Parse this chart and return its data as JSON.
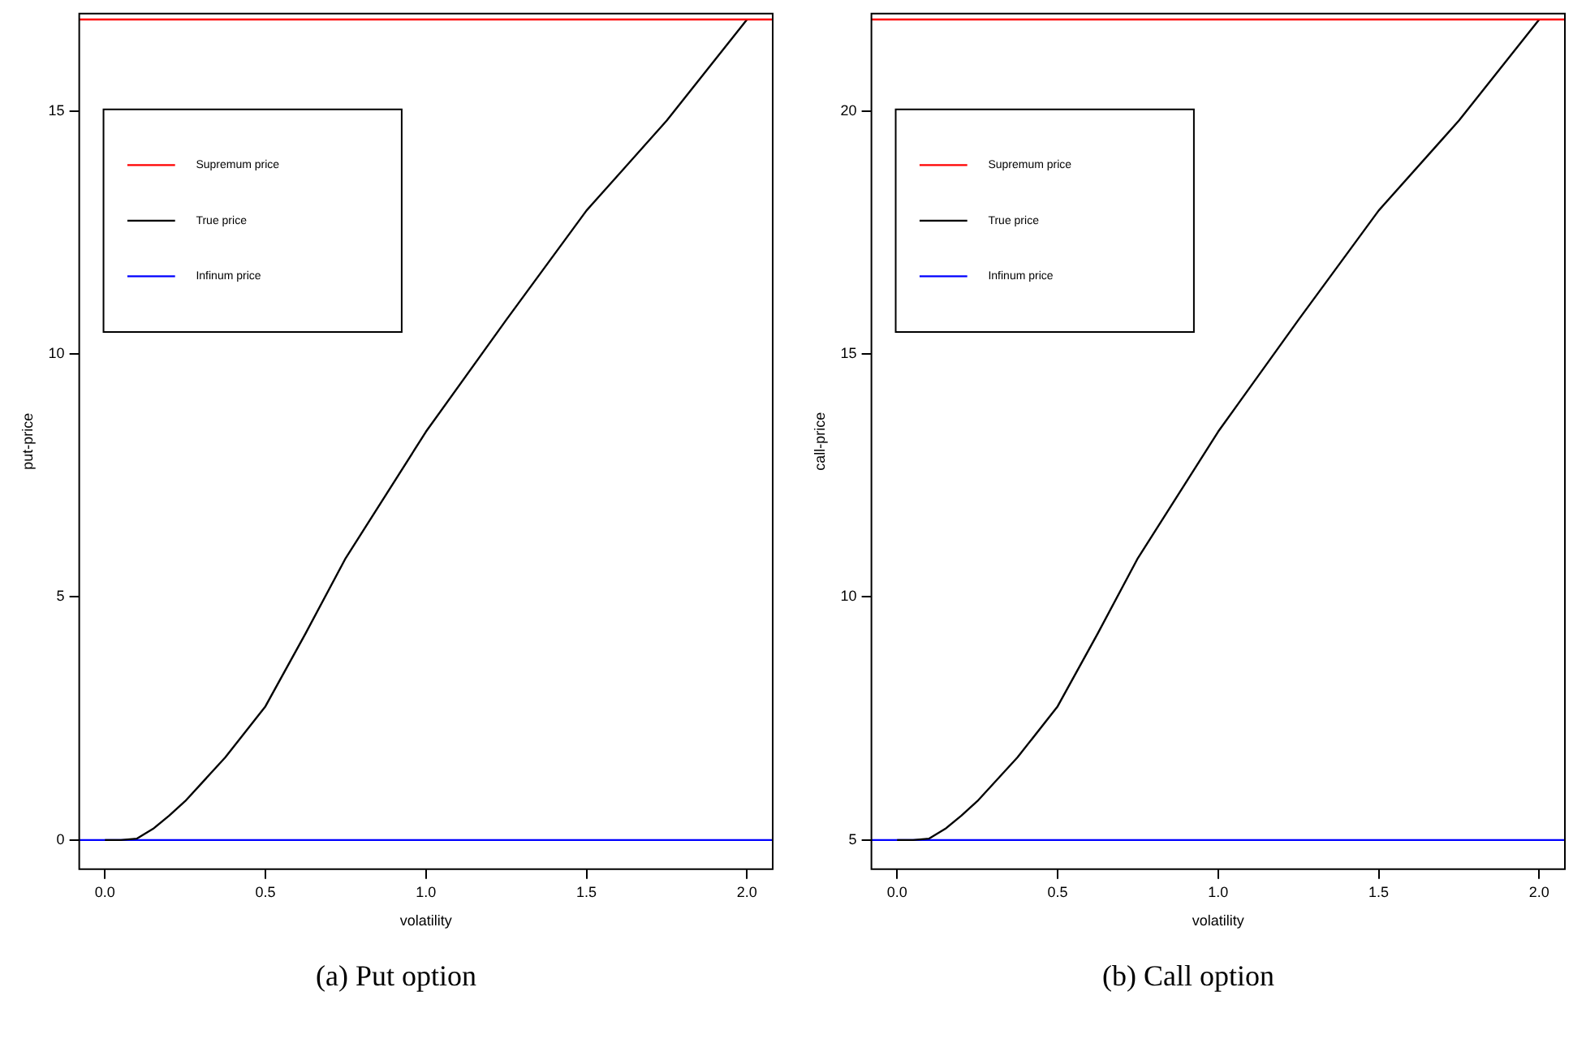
{
  "chart_data": [
    {
      "type": "line",
      "title": "(a) Put option",
      "xlabel": "volatility",
      "ylabel": "put-price",
      "xlim": [
        -0.08,
        2.08
      ],
      "xticks": [
        {
          "value": 0,
          "label": "0.0"
        },
        {
          "value": 0.5,
          "label": "0.5"
        },
        {
          "value": 1,
          "label": "1.0"
        },
        {
          "value": 1.5,
          "label": "1.5"
        },
        {
          "value": 2,
          "label": "2.0"
        }
      ],
      "ylim": [
        -0.6,
        17.0
      ],
      "yticks": [
        0,
        5,
        10,
        15
      ],
      "legend": "top left",
      "marker": "none",
      "series": [
        {
          "name": "Supremum price",
          "color": "#ff0000",
          "x": [
            -0.08,
            2.08
          ],
          "values": [
            16.88,
            16.88
          ]
        },
        {
          "name": "True price",
          "color": "#000000",
          "x": [
            0,
            0.05,
            0.1,
            0.15,
            0.2,
            0.25,
            0.375,
            0.5,
            0.625,
            0.75,
            1.0,
            1.25,
            1.5,
            1.75,
            2.0
          ],
          "values": [
            0,
            0,
            0.03,
            0.23,
            0.5,
            0.8,
            1.7,
            2.75,
            4.25,
            5.8,
            8.4,
            10.7,
            12.95,
            14.8,
            16.88
          ]
        },
        {
          "name": "Infinum price",
          "color": "#0000ff",
          "x": [
            -0.08,
            2.08
          ],
          "values": [
            0,
            0
          ]
        }
      ]
    },
    {
      "type": "line",
      "title": "(b) Call option",
      "xlabel": "volatility",
      "ylabel": "call-price",
      "xlim": [
        -0.08,
        2.08
      ],
      "xticks": [
        {
          "value": 0,
          "label": "0.0"
        },
        {
          "value": 0.5,
          "label": "0.5"
        },
        {
          "value": 1,
          "label": "1.0"
        },
        {
          "value": 1.5,
          "label": "1.5"
        },
        {
          "value": 2,
          "label": "2.0"
        }
      ],
      "ylim": [
        4.4,
        22.0
      ],
      "yticks": [
        5,
        10,
        15,
        20
      ],
      "legend": "top left",
      "marker": "none",
      "series": [
        {
          "name": "Supremum price",
          "color": "#ff0000",
          "x": [
            -0.08,
            2.08
          ],
          "values": [
            21.88,
            21.88
          ]
        },
        {
          "name": "True price",
          "color": "#000000",
          "x": [
            0,
            0.05,
            0.1,
            0.15,
            0.2,
            0.25,
            0.375,
            0.5,
            0.625,
            0.75,
            1.0,
            1.25,
            1.5,
            1.75,
            2.0
          ],
          "values": [
            5,
            5,
            5.03,
            5.23,
            5.5,
            5.8,
            6.7,
            7.75,
            9.25,
            10.8,
            13.4,
            15.7,
            17.95,
            19.8,
            21.88
          ]
        },
        {
          "name": "Infinum price",
          "color": "#0000ff",
          "x": [
            -0.08,
            2.08
          ],
          "values": [
            5,
            5
          ]
        }
      ]
    }
  ]
}
